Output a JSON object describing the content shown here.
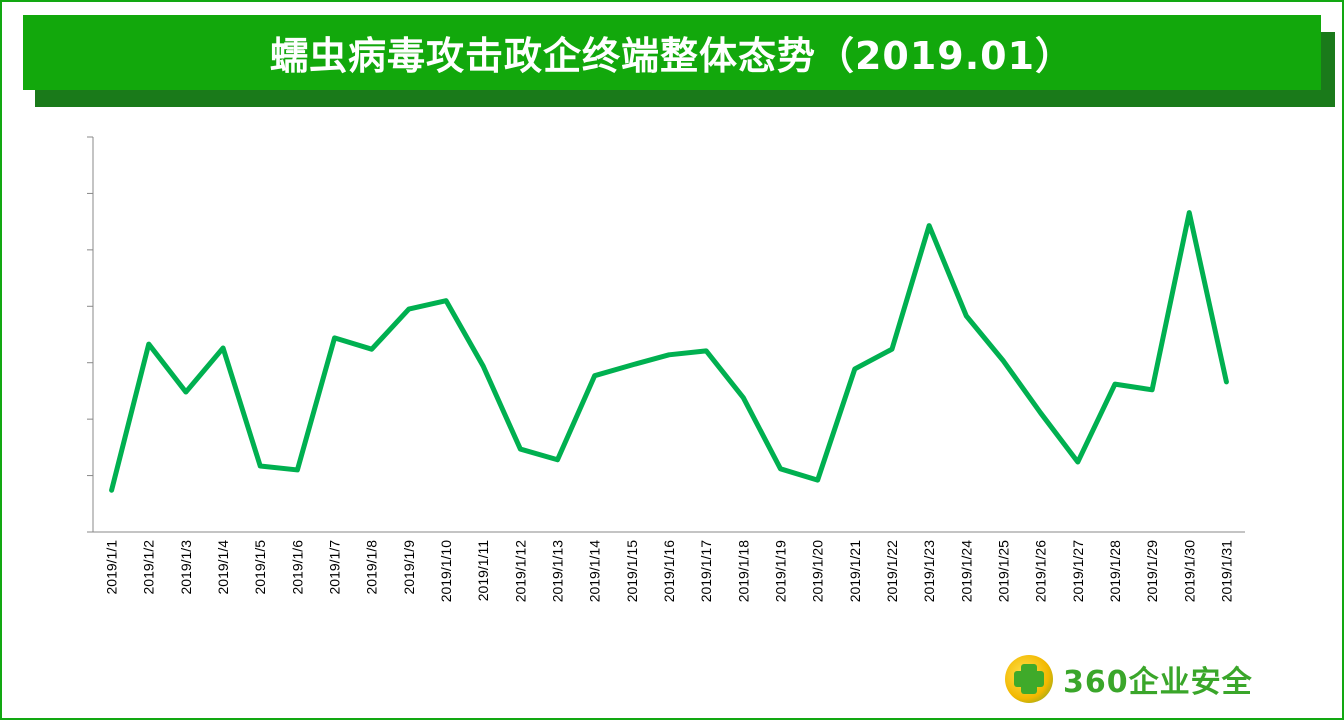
{
  "title": "蠕虫病毒攻击政企终端整体态势（2019.01）",
  "logo": {
    "text": "360企业安全"
  },
  "colors": {
    "banner": "#12a80c",
    "line": "#00b050",
    "axis": "#888888"
  },
  "chart_data": {
    "type": "line",
    "title": "",
    "xlabel": "",
    "ylabel": "",
    "y_tick_labels_shown": false,
    "ylim": [
      0,
      7
    ],
    "grid": false,
    "categories": [
      "2019/1/1",
      "2019/1/2",
      "2019/1/3",
      "2019/1/4",
      "2019/1/5",
      "2019/1/6",
      "2019/1/7",
      "2019/1/8",
      "2019/1/9",
      "2019/1/10",
      "2019/1/11",
      "2019/1/12",
      "2019/1/13",
      "2019/1/14",
      "2019/1/15",
      "2019/1/16",
      "2019/1/17",
      "2019/1/18",
      "2019/1/19",
      "2019/1/20",
      "2019/1/21",
      "2019/1/22",
      "2019/1/23",
      "2019/1/24",
      "2019/1/25",
      "2019/1/26",
      "2019/1/27",
      "2019/1/28",
      "2019/1/29",
      "2019/1/30",
      "2019/1/31"
    ],
    "series": [
      {
        "values": [
          0.74,
          3.33,
          2.48,
          3.26,
          1.17,
          1.1,
          3.44,
          3.24,
          3.95,
          4.1,
          2.94,
          1.47,
          1.28,
          2.77,
          2.96,
          3.14,
          3.21,
          2.38,
          1.12,
          0.92,
          2.89,
          3.24,
          5.43,
          3.83,
          3.03,
          2.11,
          1.24,
          2.62,
          2.52,
          5.66,
          2.66
        ]
      }
    ]
  }
}
